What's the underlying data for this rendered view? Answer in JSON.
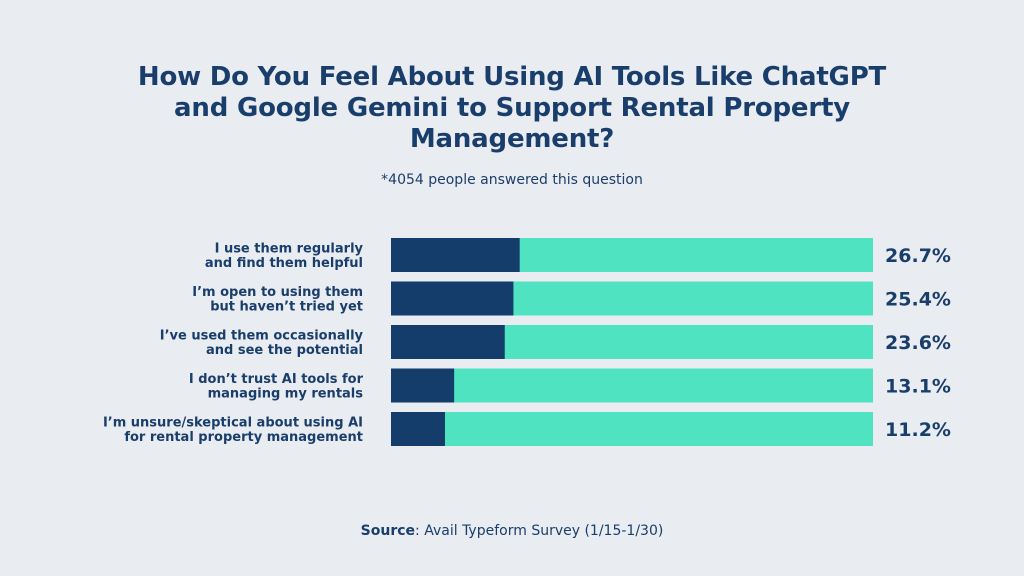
{
  "title": "How Do You Feel About Using AI Tools Like ChatGPT and Google Gemini to Support Rental Property Management?",
  "subtitle": "*4054 people answered this question",
  "source": {
    "label": "Source",
    "text": ": Avail Typeform Survey (1/15-1/30)"
  },
  "colors": {
    "background": "#e9ecf1",
    "bar_value": "#143d6b",
    "bar_track": "#4fe3c1",
    "text": "#1a3e6b"
  },
  "chart_data": {
    "type": "bar",
    "orientation": "horizontal",
    "title": "How Do You Feel About Using AI Tools Like ChatGPT and Google Gemini to Support Rental Property Management?",
    "categories": [
      [
        "I use them regularly",
        "and find them helpful"
      ],
      [
        "I’m open to using them",
        "but haven’t tried yet"
      ],
      [
        "I’ve used them occasionally",
        "and see the potential"
      ],
      [
        "I don’t trust AI tools for",
        "managing my rentals"
      ],
      [
        "I’m unsure/skeptical about using AI",
        "for rental property management"
      ]
    ],
    "values": [
      26.7,
      25.4,
      23.6,
      13.1,
      11.2
    ],
    "value_labels": [
      "26.7%",
      "25.4%",
      "23.6%",
      "13.1%",
      "11.2%"
    ],
    "unit": "%",
    "xlim": [
      0,
      100
    ],
    "grid": false,
    "legend": "none"
  }
}
